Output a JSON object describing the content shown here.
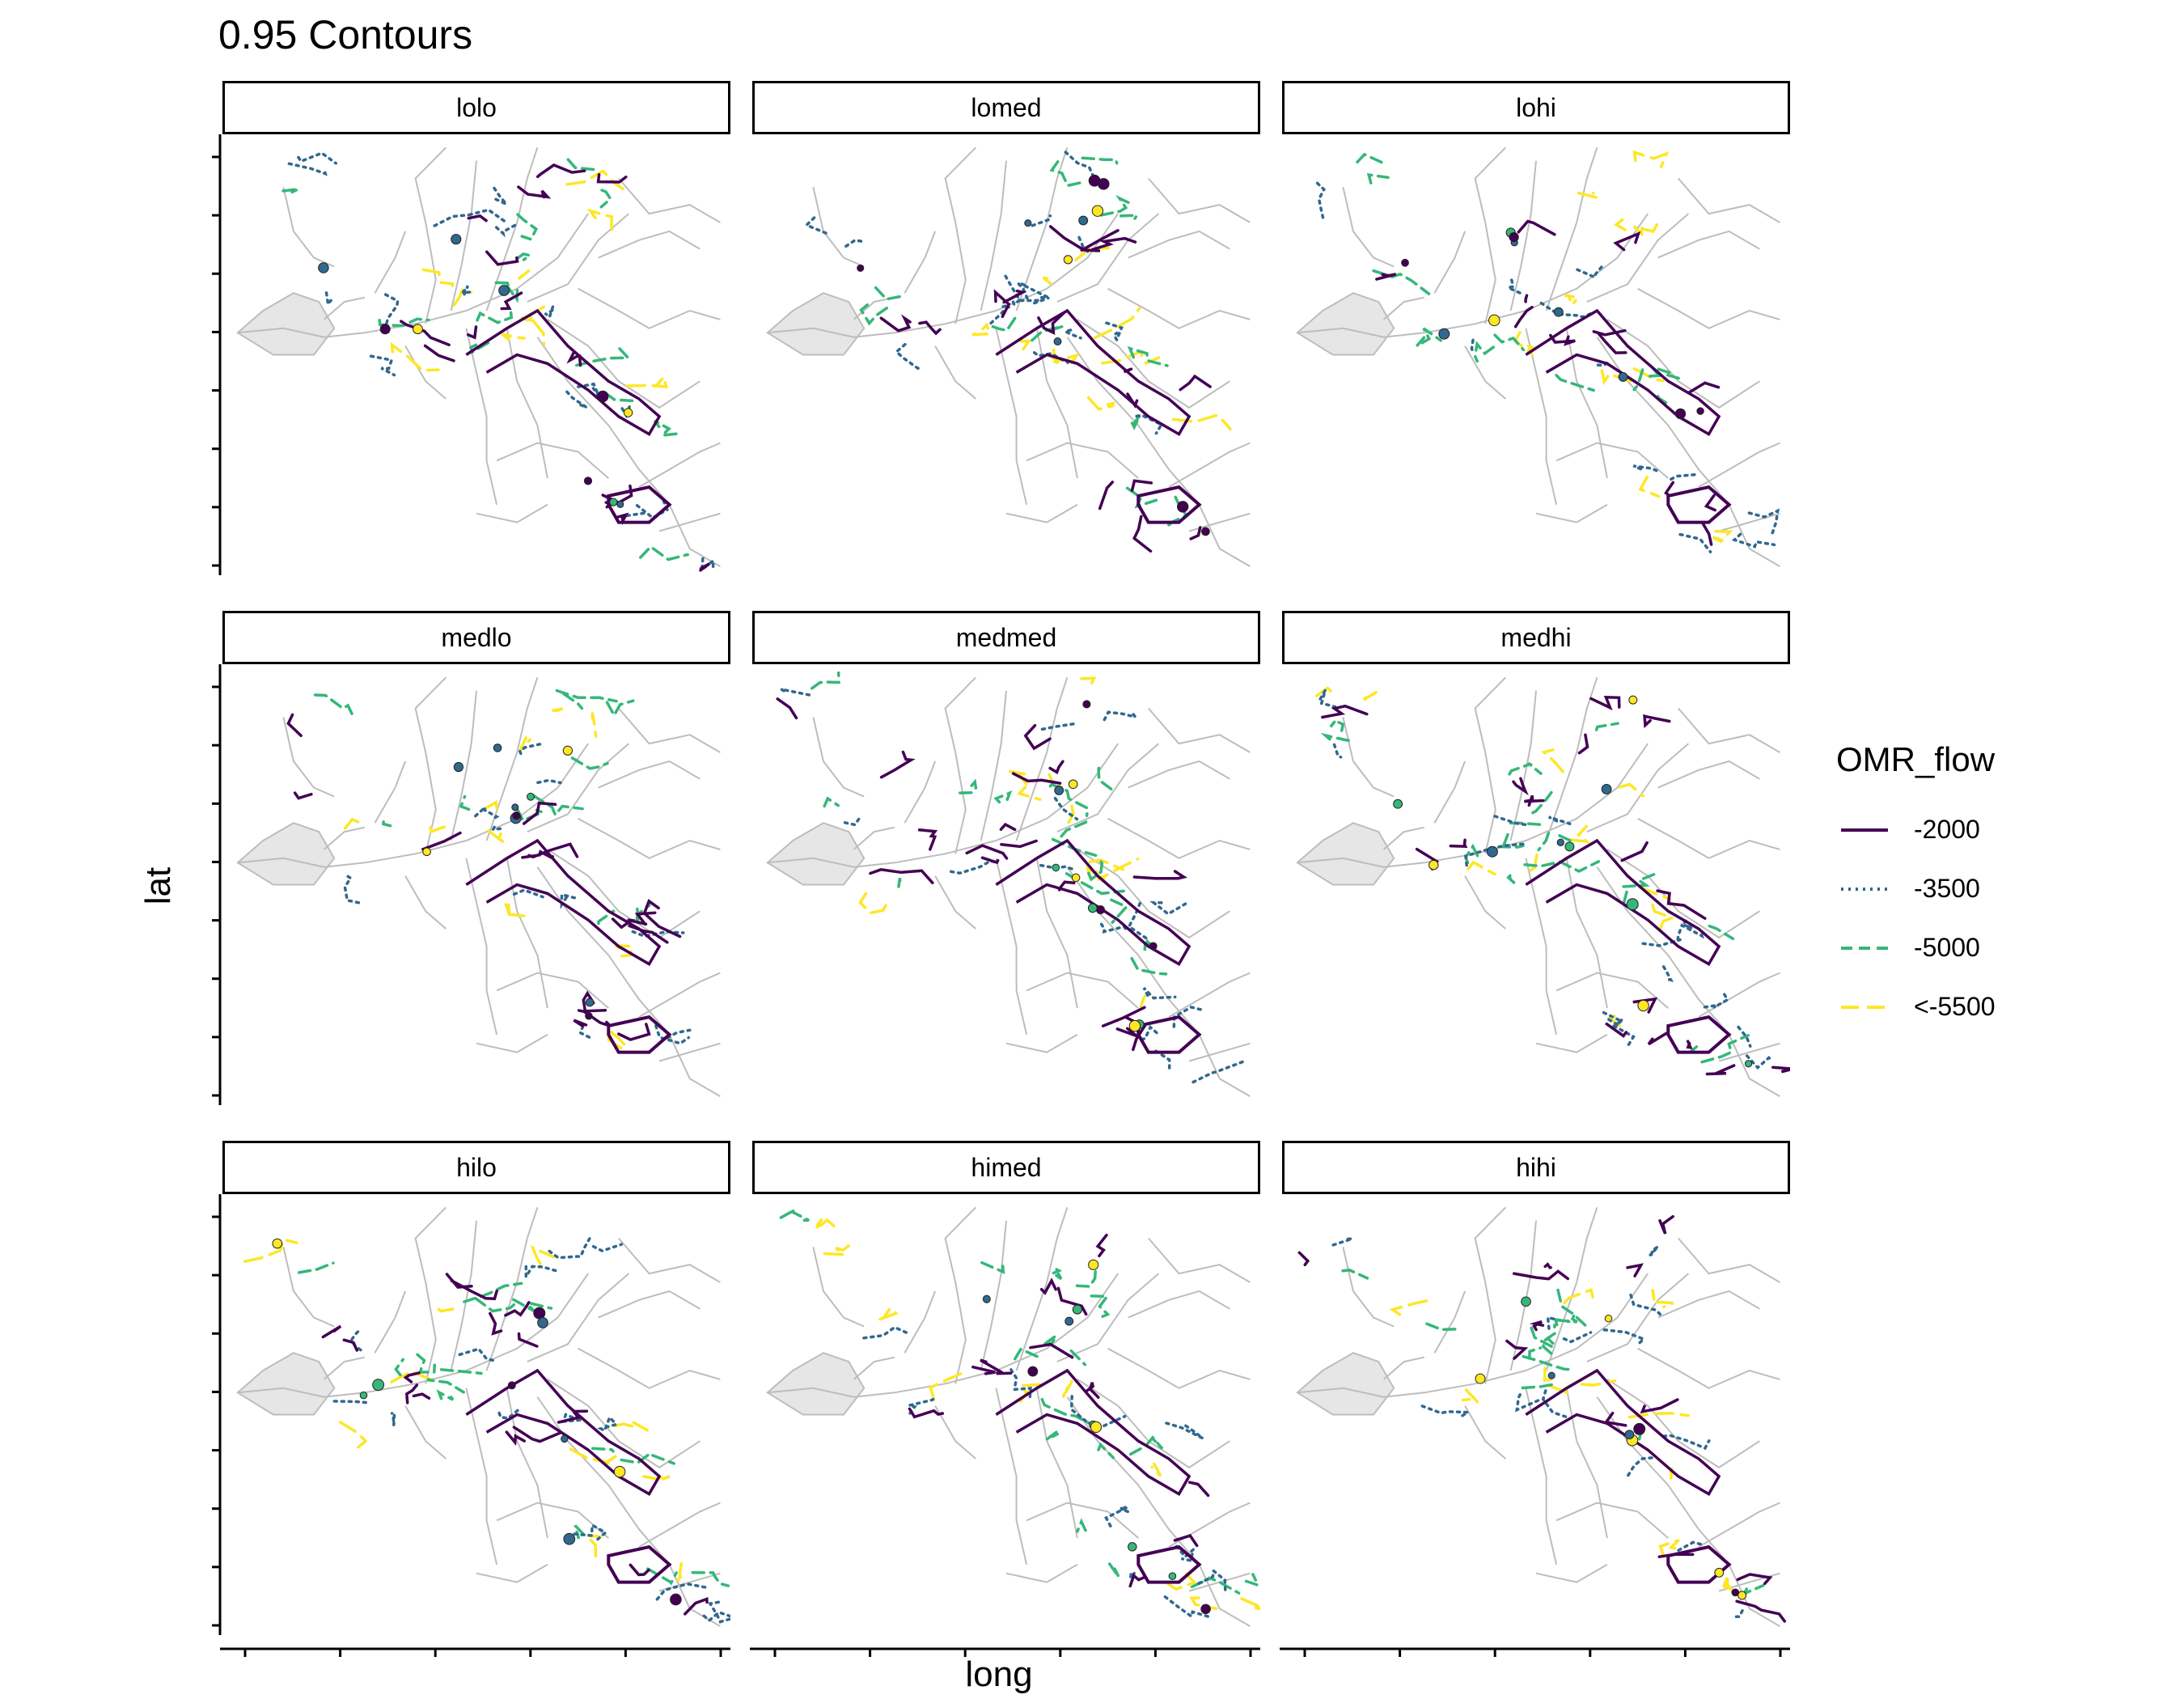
{
  "chart_data": {
    "type": "line",
    "title": "0.95 Contours",
    "xlabel": "long",
    "ylabel": "lat",
    "grid": false,
    "legend_position": "right",
    "legend": {
      "title": "OMR_flow",
      "entries": [
        {
          "label": "-2000",
          "color": "#440154",
          "linestyle": "solid"
        },
        {
          "label": "-3500",
          "color": "#31688e",
          "linestyle": "dotted"
        },
        {
          "label": "-5000",
          "color": "#35b779",
          "linestyle": "dashed"
        },
        {
          "label": "<-5500",
          "color": "#fde725",
          "linestyle": "longdash"
        }
      ]
    },
    "facets": [
      "lolo",
      "lomed",
      "lohi",
      "medlo",
      "medmed",
      "medhi",
      "hilo",
      "himed",
      "hihi"
    ],
    "x_tick_count": 6,
    "y_tick_count": 8,
    "basemap_color": "#bdbdbd"
  }
}
